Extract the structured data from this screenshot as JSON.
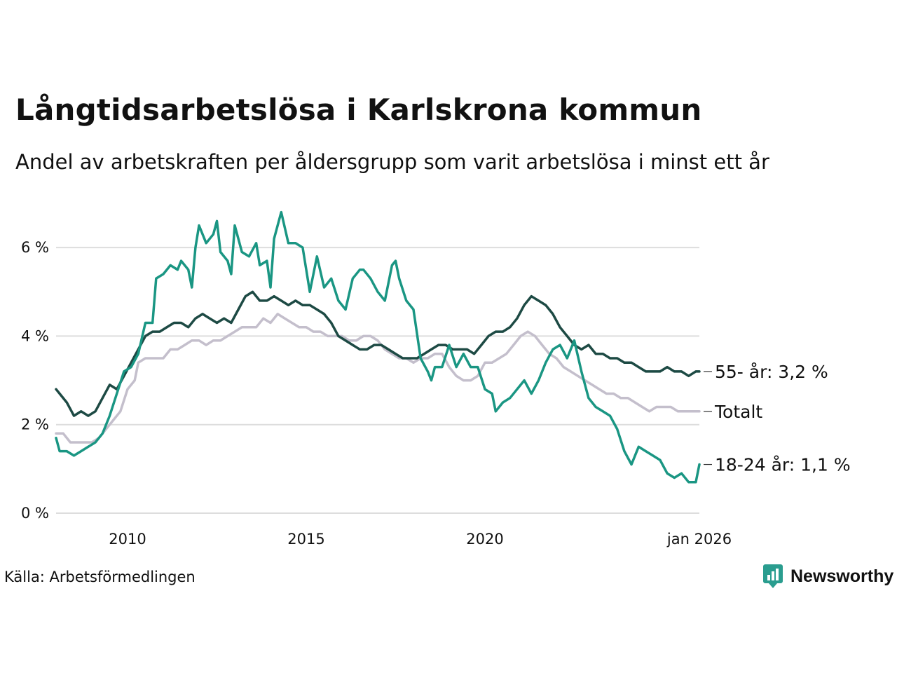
{
  "header": {
    "title": "Långtidsarbetslösa i Karlskrona kommun",
    "subtitle": "Andel av arbetskraften per åldersgrupp som varit arbetslösa i minst ett år"
  },
  "footer": {
    "source": "Källa: Arbetsförmedlingen",
    "brand": "Newsworthy"
  },
  "colors": {
    "brand": "#2a9d8f",
    "grid": "#dddddd"
  },
  "chart_data": {
    "type": "line",
    "title": "Långtidsarbetslösa i Karlskrona kommun",
    "xlabel": "",
    "ylabel": "",
    "xlim": [
      2008.0,
      2026.0
    ],
    "ylim": [
      0,
      7
    ],
    "grid": true,
    "y_ticks": [
      0,
      2,
      4,
      6
    ],
    "y_tick_labels": [
      "0 %",
      "2 %",
      "4 %",
      "6 %"
    ],
    "x_ticks": [
      2010,
      2015,
      2020,
      2026
    ],
    "x_tick_labels": [
      "2010",
      "2015",
      "2020",
      "jan 2026"
    ],
    "series": [
      {
        "name": "Totalt",
        "label": "Totalt",
        "color": "#c4bfcc",
        "points": [
          [
            2008.0,
            1.8
          ],
          [
            2008.2,
            1.8
          ],
          [
            2008.4,
            1.6
          ],
          [
            2008.8,
            1.6
          ],
          [
            2009.0,
            1.6
          ],
          [
            2009.2,
            1.7
          ],
          [
            2009.4,
            1.9
          ],
          [
            2009.6,
            2.1
          ],
          [
            2009.8,
            2.3
          ],
          [
            2010.0,
            2.8
          ],
          [
            2010.2,
            3.0
          ],
          [
            2010.3,
            3.4
          ],
          [
            2010.5,
            3.5
          ],
          [
            2010.8,
            3.5
          ],
          [
            2011.0,
            3.5
          ],
          [
            2011.2,
            3.7
          ],
          [
            2011.4,
            3.7
          ],
          [
            2011.6,
            3.8
          ],
          [
            2011.8,
            3.9
          ],
          [
            2012.0,
            3.9
          ],
          [
            2012.2,
            3.8
          ],
          [
            2012.4,
            3.9
          ],
          [
            2012.6,
            3.9
          ],
          [
            2012.8,
            4.0
          ],
          [
            2013.0,
            4.1
          ],
          [
            2013.2,
            4.2
          ],
          [
            2013.4,
            4.2
          ],
          [
            2013.6,
            4.2
          ],
          [
            2013.8,
            4.4
          ],
          [
            2014.0,
            4.3
          ],
          [
            2014.2,
            4.5
          ],
          [
            2014.4,
            4.4
          ],
          [
            2014.6,
            4.3
          ],
          [
            2014.8,
            4.2
          ],
          [
            2015.0,
            4.2
          ],
          [
            2015.2,
            4.1
          ],
          [
            2015.4,
            4.1
          ],
          [
            2015.6,
            4.0
          ],
          [
            2015.8,
            4.0
          ],
          [
            2016.0,
            4.0
          ],
          [
            2016.2,
            3.9
          ],
          [
            2016.4,
            3.9
          ],
          [
            2016.6,
            4.0
          ],
          [
            2016.8,
            4.0
          ],
          [
            2017.0,
            3.9
          ],
          [
            2017.2,
            3.7
          ],
          [
            2017.4,
            3.6
          ],
          [
            2017.6,
            3.5
          ],
          [
            2017.8,
            3.5
          ],
          [
            2018.0,
            3.4
          ],
          [
            2018.2,
            3.5
          ],
          [
            2018.4,
            3.5
          ],
          [
            2018.6,
            3.6
          ],
          [
            2018.8,
            3.6
          ],
          [
            2019.0,
            3.3
          ],
          [
            2019.2,
            3.1
          ],
          [
            2019.4,
            3.0
          ],
          [
            2019.6,
            3.0
          ],
          [
            2019.8,
            3.1
          ],
          [
            2020.0,
            3.4
          ],
          [
            2020.2,
            3.4
          ],
          [
            2020.4,
            3.5
          ],
          [
            2020.6,
            3.6
          ],
          [
            2020.8,
            3.8
          ],
          [
            2021.0,
            4.0
          ],
          [
            2021.2,
            4.1
          ],
          [
            2021.4,
            4.0
          ],
          [
            2021.6,
            3.8
          ],
          [
            2021.8,
            3.6
          ],
          [
            2022.0,
            3.5
          ],
          [
            2022.2,
            3.3
          ],
          [
            2022.4,
            3.2
          ],
          [
            2022.6,
            3.1
          ],
          [
            2022.8,
            3.0
          ],
          [
            2023.0,
            2.9
          ],
          [
            2023.2,
            2.8
          ],
          [
            2023.4,
            2.7
          ],
          [
            2023.6,
            2.7
          ],
          [
            2023.8,
            2.6
          ],
          [
            2024.0,
            2.6
          ],
          [
            2024.2,
            2.5
          ],
          [
            2024.4,
            2.4
          ],
          [
            2024.6,
            2.3
          ],
          [
            2024.8,
            2.4
          ],
          [
            2025.0,
            2.4
          ],
          [
            2025.2,
            2.4
          ],
          [
            2025.4,
            2.3
          ],
          [
            2025.6,
            2.3
          ],
          [
            2025.8,
            2.3
          ],
          [
            2026.0,
            2.3
          ]
        ]
      },
      {
        "name": "55- år",
        "label": "55- år: 3,2 %",
        "color": "#1d4a44",
        "points": [
          [
            2008.0,
            2.8
          ],
          [
            2008.1,
            2.7
          ],
          [
            2008.3,
            2.5
          ],
          [
            2008.5,
            2.2
          ],
          [
            2008.7,
            2.3
          ],
          [
            2008.9,
            2.2
          ],
          [
            2009.1,
            2.3
          ],
          [
            2009.3,
            2.6
          ],
          [
            2009.5,
            2.9
          ],
          [
            2009.7,
            2.8
          ],
          [
            2009.9,
            3.1
          ],
          [
            2010.1,
            3.4
          ],
          [
            2010.3,
            3.7
          ],
          [
            2010.5,
            4.0
          ],
          [
            2010.7,
            4.1
          ],
          [
            2010.9,
            4.1
          ],
          [
            2011.1,
            4.2
          ],
          [
            2011.3,
            4.3
          ],
          [
            2011.5,
            4.3
          ],
          [
            2011.7,
            4.2
          ],
          [
            2011.9,
            4.4
          ],
          [
            2012.1,
            4.5
          ],
          [
            2012.3,
            4.4
          ],
          [
            2012.5,
            4.3
          ],
          [
            2012.7,
            4.4
          ],
          [
            2012.9,
            4.3
          ],
          [
            2013.1,
            4.6
          ],
          [
            2013.3,
            4.9
          ],
          [
            2013.5,
            5.0
          ],
          [
            2013.7,
            4.8
          ],
          [
            2013.9,
            4.8
          ],
          [
            2014.1,
            4.9
          ],
          [
            2014.3,
            4.8
          ],
          [
            2014.5,
            4.7
          ],
          [
            2014.7,
            4.8
          ],
          [
            2014.9,
            4.7
          ],
          [
            2015.1,
            4.7
          ],
          [
            2015.3,
            4.6
          ],
          [
            2015.5,
            4.5
          ],
          [
            2015.7,
            4.3
          ],
          [
            2015.9,
            4.0
          ],
          [
            2016.1,
            3.9
          ],
          [
            2016.3,
            3.8
          ],
          [
            2016.5,
            3.7
          ],
          [
            2016.7,
            3.7
          ],
          [
            2016.9,
            3.8
          ],
          [
            2017.1,
            3.8
          ],
          [
            2017.3,
            3.7
          ],
          [
            2017.5,
            3.6
          ],
          [
            2017.7,
            3.5
          ],
          [
            2017.9,
            3.5
          ],
          [
            2018.1,
            3.5
          ],
          [
            2018.3,
            3.6
          ],
          [
            2018.5,
            3.7
          ],
          [
            2018.7,
            3.8
          ],
          [
            2018.9,
            3.8
          ],
          [
            2019.1,
            3.7
          ],
          [
            2019.3,
            3.7
          ],
          [
            2019.5,
            3.7
          ],
          [
            2019.7,
            3.6
          ],
          [
            2019.9,
            3.8
          ],
          [
            2020.1,
            4.0
          ],
          [
            2020.3,
            4.1
          ],
          [
            2020.5,
            4.1
          ],
          [
            2020.7,
            4.2
          ],
          [
            2020.9,
            4.4
          ],
          [
            2021.1,
            4.7
          ],
          [
            2021.3,
            4.9
          ],
          [
            2021.5,
            4.8
          ],
          [
            2021.7,
            4.7
          ],
          [
            2021.9,
            4.5
          ],
          [
            2022.1,
            4.2
          ],
          [
            2022.3,
            4.0
          ],
          [
            2022.5,
            3.8
          ],
          [
            2022.7,
            3.7
          ],
          [
            2022.9,
            3.8
          ],
          [
            2023.1,
            3.6
          ],
          [
            2023.3,
            3.6
          ],
          [
            2023.5,
            3.5
          ],
          [
            2023.7,
            3.5
          ],
          [
            2023.9,
            3.4
          ],
          [
            2024.1,
            3.4
          ],
          [
            2024.3,
            3.3
          ],
          [
            2024.5,
            3.2
          ],
          [
            2024.7,
            3.2
          ],
          [
            2024.9,
            3.2
          ],
          [
            2025.1,
            3.3
          ],
          [
            2025.3,
            3.2
          ],
          [
            2025.5,
            3.2
          ],
          [
            2025.7,
            3.1
          ],
          [
            2025.9,
            3.2
          ],
          [
            2026.0,
            3.2
          ]
        ]
      },
      {
        "name": "18-24 år",
        "label": "18-24 år: 1,1 %",
        "color": "#1a9683",
        "points": [
          [
            2008.0,
            1.7
          ],
          [
            2008.1,
            1.4
          ],
          [
            2008.3,
            1.4
          ],
          [
            2008.5,
            1.3
          ],
          [
            2008.7,
            1.4
          ],
          [
            2008.9,
            1.5
          ],
          [
            2009.1,
            1.6
          ],
          [
            2009.3,
            1.8
          ],
          [
            2009.5,
            2.2
          ],
          [
            2009.7,
            2.7
          ],
          [
            2009.9,
            3.2
          ],
          [
            2010.1,
            3.3
          ],
          [
            2010.3,
            3.6
          ],
          [
            2010.5,
            4.3
          ],
          [
            2010.7,
            4.3
          ],
          [
            2010.8,
            5.3
          ],
          [
            2011.0,
            5.4
          ],
          [
            2011.2,
            5.6
          ],
          [
            2011.4,
            5.5
          ],
          [
            2011.5,
            5.7
          ],
          [
            2011.7,
            5.5
          ],
          [
            2011.8,
            5.1
          ],
          [
            2011.9,
            6.0
          ],
          [
            2012.0,
            6.5
          ],
          [
            2012.2,
            6.1
          ],
          [
            2012.4,
            6.3
          ],
          [
            2012.5,
            6.6
          ],
          [
            2012.6,
            5.9
          ],
          [
            2012.8,
            5.7
          ],
          [
            2012.9,
            5.4
          ],
          [
            2013.0,
            6.5
          ],
          [
            2013.2,
            5.9
          ],
          [
            2013.4,
            5.8
          ],
          [
            2013.6,
            6.1
          ],
          [
            2013.7,
            5.6
          ],
          [
            2013.9,
            5.7
          ],
          [
            2014.0,
            5.1
          ],
          [
            2014.1,
            6.2
          ],
          [
            2014.3,
            6.8
          ],
          [
            2014.5,
            6.1
          ],
          [
            2014.7,
            6.1
          ],
          [
            2014.9,
            6.0
          ],
          [
            2015.0,
            5.5
          ],
          [
            2015.1,
            5.0
          ],
          [
            2015.3,
            5.8
          ],
          [
            2015.5,
            5.1
          ],
          [
            2015.7,
            5.3
          ],
          [
            2015.9,
            4.8
          ],
          [
            2016.1,
            4.6
          ],
          [
            2016.3,
            5.3
          ],
          [
            2016.5,
            5.5
          ],
          [
            2016.6,
            5.5
          ],
          [
            2016.8,
            5.3
          ],
          [
            2017.0,
            5.0
          ],
          [
            2017.2,
            4.8
          ],
          [
            2017.4,
            5.6
          ],
          [
            2017.5,
            5.7
          ],
          [
            2017.6,
            5.3
          ],
          [
            2017.8,
            4.8
          ],
          [
            2018.0,
            4.6
          ],
          [
            2018.2,
            3.5
          ],
          [
            2018.4,
            3.2
          ],
          [
            2018.5,
            3.0
          ],
          [
            2018.6,
            3.3
          ],
          [
            2018.8,
            3.3
          ],
          [
            2019.0,
            3.8
          ],
          [
            2019.2,
            3.3
          ],
          [
            2019.4,
            3.6
          ],
          [
            2019.6,
            3.3
          ],
          [
            2019.8,
            3.3
          ],
          [
            2020.0,
            2.8
          ],
          [
            2020.2,
            2.7
          ],
          [
            2020.3,
            2.3
          ],
          [
            2020.5,
            2.5
          ],
          [
            2020.7,
            2.6
          ],
          [
            2020.9,
            2.8
          ],
          [
            2021.1,
            3.0
          ],
          [
            2021.3,
            2.7
          ],
          [
            2021.5,
            3.0
          ],
          [
            2021.7,
            3.4
          ],
          [
            2021.9,
            3.7
          ],
          [
            2022.1,
            3.8
          ],
          [
            2022.3,
            3.5
          ],
          [
            2022.5,
            3.9
          ],
          [
            2022.7,
            3.2
          ],
          [
            2022.9,
            2.6
          ],
          [
            2023.1,
            2.4
          ],
          [
            2023.3,
            2.3
          ],
          [
            2023.5,
            2.2
          ],
          [
            2023.7,
            1.9
          ],
          [
            2023.9,
            1.4
          ],
          [
            2024.1,
            1.1
          ],
          [
            2024.3,
            1.5
          ],
          [
            2024.5,
            1.4
          ],
          [
            2024.7,
            1.3
          ],
          [
            2024.9,
            1.2
          ],
          [
            2025.1,
            0.9
          ],
          [
            2025.3,
            0.8
          ],
          [
            2025.5,
            0.9
          ],
          [
            2025.7,
            0.7
          ],
          [
            2025.9,
            0.7
          ],
          [
            2026.0,
            1.1
          ]
        ]
      }
    ]
  }
}
